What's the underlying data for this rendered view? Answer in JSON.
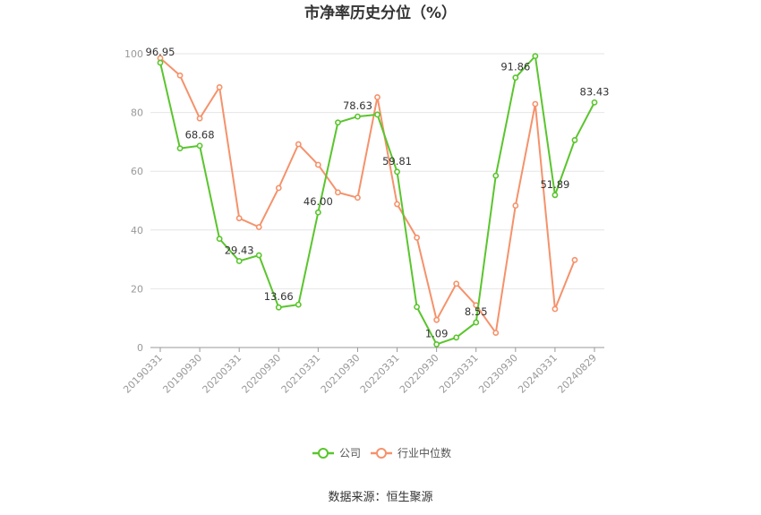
{
  "chart_data": {
    "type": "line",
    "title": "市净率历史分位（%）",
    "source": "数据来源：恒生聚源",
    "ylim": [
      0,
      100
    ],
    "yticks": [
      "0",
      "20",
      "40",
      "60",
      "80",
      "100"
    ],
    "xtick_labels": [
      "20190331",
      "20190930",
      "20200331",
      "20200930",
      "20210331",
      "20210930",
      "20220331",
      "20220930",
      "20230331",
      "20230930",
      "20240331",
      "20240829"
    ],
    "x": [
      "20190331",
      "20190630",
      "20190930",
      "20191231",
      "20200331",
      "20200630",
      "20200930",
      "20201231",
      "20210331",
      "20210630",
      "20210930",
      "20211231",
      "20220331",
      "20220630",
      "20220930",
      "20221231",
      "20230331",
      "20230630",
      "20230930",
      "20231231",
      "20240331",
      "20240630",
      "20240829"
    ],
    "legend_position": "bottom",
    "series": [
      {
        "name": "公司",
        "color": "#5ac52d",
        "values": [
          96.95,
          67.8,
          68.68,
          37.0,
          29.43,
          31.4,
          13.66,
          14.6,
          46.0,
          76.6,
          78.63,
          79.3,
          59.81,
          13.8,
          1.09,
          3.4,
          8.55,
          58.5,
          91.86,
          99.2,
          51.89,
          70.6,
          83.43
        ],
        "labels": {
          "0": "96.95",
          "2": "68.68",
          "4": "29.43",
          "6": "13.66",
          "8": "46.00",
          "10": "78.63",
          "12": "59.81",
          "14": "1.09",
          "16": "8.55",
          "18": "91.86",
          "20": "51.89",
          "22": "83.43"
        }
      },
      {
        "name": "行业中位数",
        "color": "#f5926b",
        "values": [
          98.5,
          92.6,
          78.0,
          88.6,
          44.0,
          41.0,
          54.3,
          69.2,
          62.2,
          52.8,
          51.0,
          85.2,
          48.8,
          37.4,
          9.4,
          21.7,
          14.4,
          5.0,
          48.3,
          82.9,
          13.1,
          29.8,
          null
        ]
      }
    ]
  }
}
